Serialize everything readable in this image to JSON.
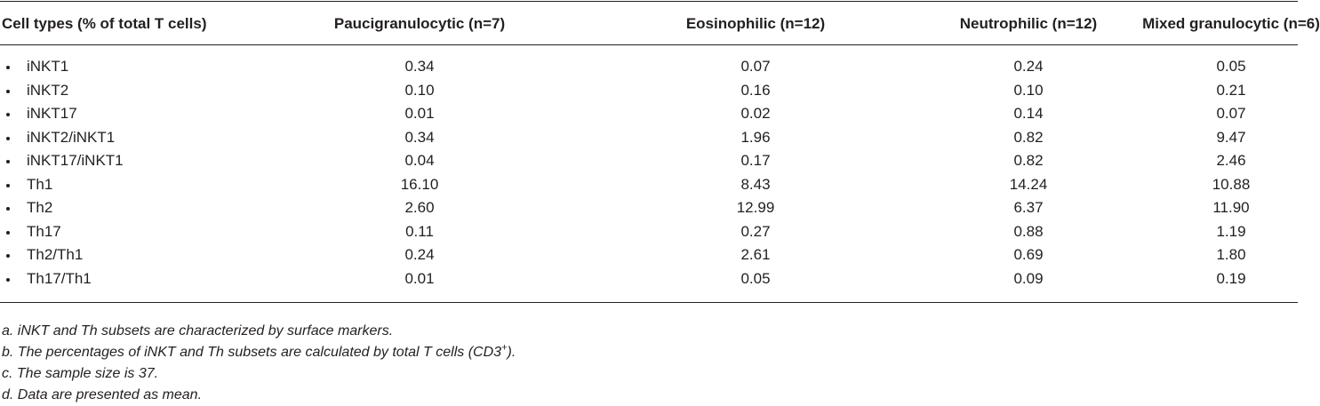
{
  "table": {
    "columns": [
      "Cell types (% of total T cells)",
      "Paucigranulocytic (n=7)",
      "Eosinophilic (n=12)",
      "Neutrophilic (n=12)",
      "Mixed granulocytic (n=6)"
    ],
    "rows": [
      {
        "label": "iNKT1",
        "values": [
          "0.34",
          "0.07",
          "0.24",
          "0.05"
        ]
      },
      {
        "label": "iNKT2",
        "values": [
          "0.10",
          "0.16",
          "0.10",
          "0.21"
        ]
      },
      {
        "label": "iNKT17",
        "values": [
          "0.01",
          "0.02",
          "0.14",
          "0.07"
        ]
      },
      {
        "label": "iNKT2/iNKT1",
        "values": [
          "0.34",
          "1.96",
          "0.82",
          "9.47"
        ]
      },
      {
        "label": "iNKT17/iNKT1",
        "values": [
          "0.04",
          "0.17",
          "0.82",
          "2.46"
        ]
      },
      {
        "label": "Th1",
        "values": [
          "16.10",
          "8.43",
          "14.24",
          "10.88"
        ]
      },
      {
        "label": "Th2",
        "values": [
          "2.60",
          "12.99",
          "6.37",
          "11.90"
        ]
      },
      {
        "label": "Th17",
        "values": [
          "0.11",
          "0.27",
          "0.88",
          "1.19"
        ]
      },
      {
        "label": "Th2/Th1",
        "values": [
          "0.24",
          "2.61",
          "0.69",
          "1.80"
        ]
      },
      {
        "label": "Th17/Th1",
        "values": [
          "0.01",
          "0.05",
          "0.09",
          "0.19"
        ]
      }
    ],
    "footnotes": [
      [
        "a. iNKT and Th subsets are characterized by surface markers."
      ],
      [
        "b. The percentages of iNKT and Th subsets are calculated by total T cells (CD3",
        "+",
        ")."
      ],
      [
        "c. The sample size is 37."
      ],
      [
        "d. Data are presented as mean."
      ]
    ]
  }
}
